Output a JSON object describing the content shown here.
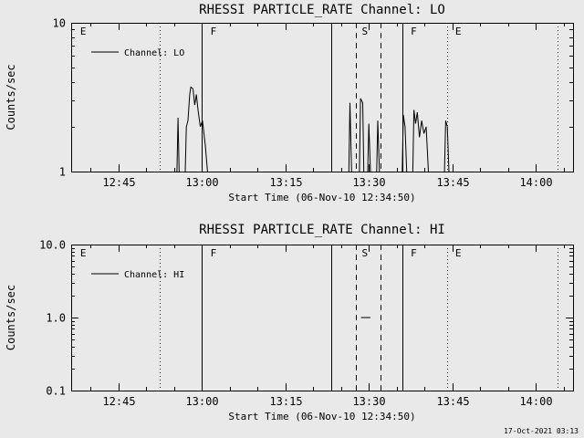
{
  "figure": {
    "bg": "#e9e9e9",
    "fg": "#000000",
    "timestamp": "17-Oct-2021 03:13"
  },
  "chart_data": [
    {
      "type": "line",
      "title": "RHESSI PARTICLE_RATE Channel: LO",
      "ylabel": "Counts/sec",
      "xlabel": "Start Time (06-Nov-10 12:34:50)",
      "legend": "Channel: LO",
      "yscale": "log",
      "ylim": [
        1,
        10
      ],
      "yticks": [
        {
          "v": 1,
          "label": "1"
        },
        {
          "v": 10,
          "label": "10"
        }
      ],
      "x_encoding": "minutes_after_12:00",
      "xlim_minutes": [
        36.5,
        126.7
      ],
      "xminor_step": 5,
      "xticks": [
        {
          "t": 45,
          "label": "12:45"
        },
        {
          "t": 60,
          "label": "13:00"
        },
        {
          "t": 75,
          "label": "13:15"
        },
        {
          "t": 90,
          "label": "13:30"
        },
        {
          "t": 105,
          "label": "13:45"
        },
        {
          "t": 120,
          "label": "14:00"
        }
      ],
      "flags": [
        {
          "t": 37.8,
          "label": "E"
        },
        {
          "t": 61.2,
          "label": "F"
        },
        {
          "t": 88.4,
          "label": "S"
        },
        {
          "t": 97.2,
          "label": "F"
        },
        {
          "t": 105.2,
          "label": "E"
        }
      ],
      "vlines": [
        {
          "t": 52.4,
          "style": "dotted"
        },
        {
          "t": 60.0,
          "style": "solid"
        },
        {
          "t": 83.3,
          "style": "solid"
        },
        {
          "t": 87.6,
          "style": "dashed"
        },
        {
          "t": 92.1,
          "style": "dashed"
        },
        {
          "t": 96.0,
          "style": "solid"
        },
        {
          "t": 104.0,
          "style": "dotted"
        },
        {
          "t": 123.9,
          "style": "dotted"
        }
      ],
      "segments": [
        [
          [
            55.5,
            1
          ],
          [
            55.7,
            2.3
          ],
          [
            55.9,
            1
          ]
        ],
        [
          [
            57.0,
            1
          ],
          [
            57.2,
            2.0
          ],
          [
            57.5,
            2.2
          ],
          [
            57.8,
            3.3
          ],
          [
            58.0,
            3.7
          ],
          [
            58.4,
            3.6
          ],
          [
            58.7,
            2.8
          ],
          [
            59.0,
            3.3
          ],
          [
            59.3,
            2.6
          ],
          [
            59.7,
            2.0
          ],
          [
            60.1,
            2.2
          ],
          [
            60.6,
            1.5
          ],
          [
            61.0,
            1
          ]
        ],
        [
          [
            86.4,
            1
          ],
          [
            86.6,
            2.9
          ],
          [
            86.9,
            1
          ]
        ],
        [
          [
            88.3,
            1
          ],
          [
            88.5,
            3.1
          ],
          [
            88.9,
            2.9
          ],
          [
            89.1,
            1
          ]
        ],
        [
          [
            89.8,
            1
          ],
          [
            90.0,
            2.1
          ],
          [
            90.3,
            1
          ]
        ],
        [
          [
            91.4,
            1
          ],
          [
            91.6,
            2.2
          ],
          [
            91.9,
            1
          ]
        ],
        [
          [
            96.0,
            1
          ],
          [
            96.2,
            2.4
          ],
          [
            96.5,
            2.0
          ],
          [
            96.8,
            1
          ]
        ],
        [
          [
            97.9,
            1
          ],
          [
            98.1,
            2.6
          ],
          [
            98.4,
            2.1
          ],
          [
            98.7,
            2.5
          ],
          [
            99.1,
            1.7
          ],
          [
            99.5,
            2.2
          ],
          [
            99.9,
            1.8
          ],
          [
            100.3,
            2.0
          ],
          [
            100.7,
            1
          ]
        ],
        [
          [
            103.6,
            1
          ],
          [
            103.8,
            2.2
          ],
          [
            104.1,
            2.0
          ],
          [
            104.4,
            1
          ]
        ]
      ]
    },
    {
      "type": "line",
      "title": "RHESSI PARTICLE_RATE Channel: HI",
      "ylabel": "Counts/sec",
      "xlabel": "Start Time (06-Nov-10 12:34:50)",
      "legend": "Channel: HI",
      "yscale": "log",
      "ylim": [
        0.1,
        10
      ],
      "yticks": [
        {
          "v": 0.1,
          "label": "0.1"
        },
        {
          "v": 1,
          "label": "1.0"
        },
        {
          "v": 10,
          "label": "10.0"
        }
      ],
      "x_encoding": "minutes_after_12:00",
      "xlim_minutes": [
        36.5,
        126.7
      ],
      "xminor_step": 5,
      "xticks": [
        {
          "t": 45,
          "label": "12:45"
        },
        {
          "t": 60,
          "label": "13:00"
        },
        {
          "t": 75,
          "label": "13:15"
        },
        {
          "t": 90,
          "label": "13:30"
        },
        {
          "t": 105,
          "label": "13:45"
        },
        {
          "t": 120,
          "label": "14:00"
        }
      ],
      "flags": [
        {
          "t": 37.8,
          "label": "E"
        },
        {
          "t": 61.2,
          "label": "F"
        },
        {
          "t": 88.4,
          "label": "S"
        },
        {
          "t": 97.2,
          "label": "F"
        },
        {
          "t": 105.2,
          "label": "E"
        }
      ],
      "vlines": [
        {
          "t": 52.4,
          "style": "dotted"
        },
        {
          "t": 60.0,
          "style": "solid"
        },
        {
          "t": 83.3,
          "style": "solid"
        },
        {
          "t": 87.6,
          "style": "dashed"
        },
        {
          "t": 92.1,
          "style": "dashed"
        },
        {
          "t": 96.0,
          "style": "solid"
        },
        {
          "t": 104.0,
          "style": "dotted"
        },
        {
          "t": 123.9,
          "style": "dotted"
        }
      ],
      "segments": [
        [
          [
            88.6,
            1.0
          ],
          [
            90.3,
            1.0
          ]
        ]
      ]
    }
  ]
}
